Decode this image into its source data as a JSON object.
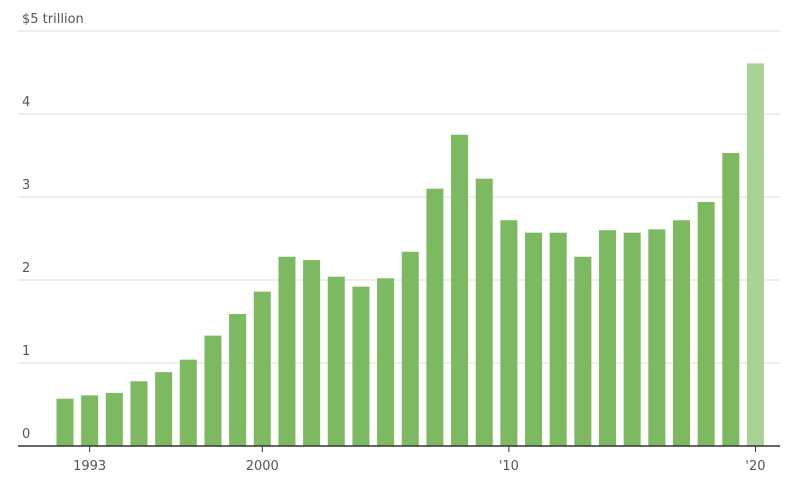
{
  "chart_data": {
    "type": "bar",
    "categories": [
      null,
      "1993",
      null,
      null,
      null,
      null,
      null,
      null,
      "2000",
      null,
      null,
      null,
      null,
      null,
      null,
      null,
      null,
      null,
      "'10",
      null,
      null,
      null,
      null,
      null,
      null,
      null,
      null,
      null,
      "'20"
    ],
    "values": [
      0.57,
      0.61,
      0.64,
      0.78,
      0.89,
      1.04,
      1.33,
      1.59,
      1.86,
      2.28,
      2.24,
      2.04,
      1.92,
      2.02,
      2.34,
      3.1,
      3.75,
      3.22,
      2.72,
      2.57,
      2.57,
      2.28,
      2.6,
      2.57,
      2.61,
      2.72,
      2.94,
      3.53,
      4.61
    ],
    "colors": [
      "#7cb961",
      "#7cb961",
      "#7cb961",
      "#7cb961",
      "#7cb961",
      "#7cb961",
      "#7cb961",
      "#7cb961",
      "#7cb961",
      "#7cb961",
      "#7cb961",
      "#7cb961",
      "#7cb961",
      "#7cb961",
      "#7cb961",
      "#7cb961",
      "#7cb961",
      "#7cb961",
      "#7cb961",
      "#7cb961",
      "#7cb961",
      "#7cb961",
      "#7cb961",
      "#7cb961",
      "#7cb961",
      "#7cb961",
      "#7cb961",
      "#7cb961",
      "#a9d396"
    ],
    "ylim": [
      0,
      5
    ],
    "yticks": [
      0,
      1,
      2,
      3,
      4,
      {
        "value": 5,
        "label": "$5 trillion"
      }
    ],
    "grid": true
  }
}
